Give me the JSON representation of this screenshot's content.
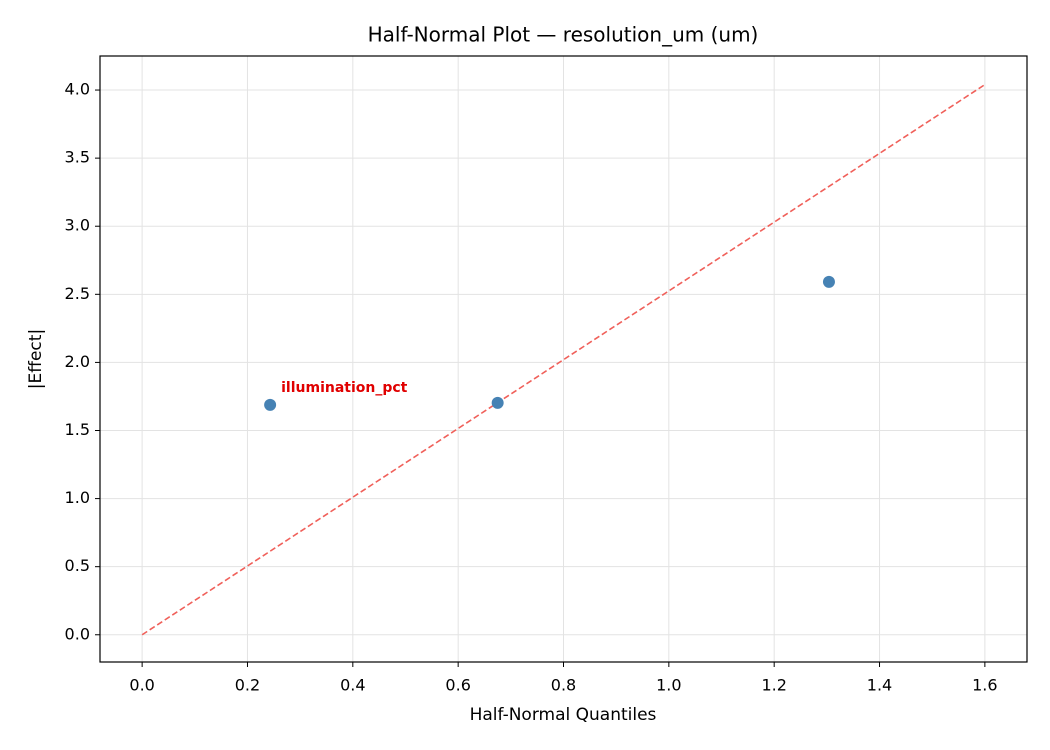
{
  "chart_data": {
    "type": "scatter",
    "title": "Half-Normal Plot — resolution_um (um)",
    "x_label": "Half-Normal Quantiles",
    "y_label": "|Effect|",
    "xlim": [
      -0.08,
      1.68
    ],
    "ylim": [
      -0.2,
      4.25
    ],
    "xticks": [
      {
        "value": 0,
        "label": "0.0"
      },
      {
        "value": 0.2,
        "label": "0.2"
      },
      {
        "value": 0.4,
        "label": "0.4"
      },
      {
        "value": 0.6,
        "label": "0.6"
      },
      {
        "value": 0.8,
        "label": "0.8"
      },
      {
        "value": 1,
        "label": "1.0"
      },
      {
        "value": 1.2,
        "label": "1.2"
      },
      {
        "value": 1.4,
        "label": "1.4"
      },
      {
        "value": 1.6,
        "label": "1.6"
      }
    ],
    "yticks": [
      {
        "value": 0,
        "label": "0.0"
      },
      {
        "value": 0.5,
        "label": "0.5"
      },
      {
        "value": 1,
        "label": "1.0"
      },
      {
        "value": 1.5,
        "label": "1.5"
      },
      {
        "value": 2,
        "label": "2.0"
      },
      {
        "value": 2.5,
        "label": "2.5"
      },
      {
        "value": 3,
        "label": "3.0"
      },
      {
        "value": 3.5,
        "label": "3.5"
      },
      {
        "value": 4,
        "label": "4.0"
      }
    ],
    "grid": true,
    "points": {
      "x": [
        0.243,
        0.675,
        1.304
      ],
      "values": [
        1.688,
        1.703,
        2.591
      ],
      "color": "#4682b4"
    },
    "reference_line": {
      "x": [
        0,
        1.6
      ],
      "values": [
        0,
        4.04
      ],
      "color": "#f0605a",
      "dashed": true
    },
    "annotations": [
      {
        "text": "illumination_pct",
        "point": 0,
        "color": "#e00000"
      }
    ]
  }
}
